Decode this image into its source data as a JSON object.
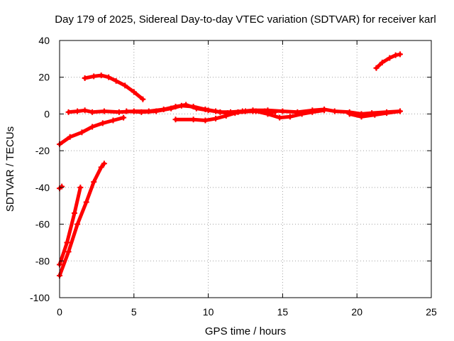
{
  "chart_data": {
    "type": "scatter",
    "title": "Day 179 of 2025, Sidereal Day-to-day VTEC variation (SDTVAR) for receiver karl",
    "xlabel": "GPS time / hours",
    "ylabel": "SDTVAR / TECUs",
    "xlim": [
      0,
      25
    ],
    "ylim": [
      -100,
      40
    ],
    "xticks": [
      0,
      5,
      10,
      15,
      20,
      25
    ],
    "yticks": [
      -100,
      -80,
      -60,
      -40,
      -20,
      0,
      20,
      40
    ],
    "xtick_labels": [
      "0",
      "5",
      "10",
      "15",
      "20",
      "25"
    ],
    "ytick_labels": [
      "-100",
      "-80",
      "-60",
      "-40",
      "-20",
      "0",
      "20",
      "40"
    ],
    "grid": true,
    "legend": "none",
    "color": "#ff0000",
    "series": [
      {
        "points": [
          [
            0.0,
            -40.5
          ],
          [
            0.15,
            -39.5
          ]
        ]
      },
      {
        "points": [
          [
            0.0,
            -82
          ],
          [
            0.5,
            -70
          ],
          [
            1.0,
            -54
          ],
          [
            1.4,
            -40
          ]
        ]
      },
      {
        "points": [
          [
            0.0,
            -88
          ],
          [
            0.6,
            -75
          ],
          [
            1.2,
            -60
          ],
          [
            1.8,
            -48
          ],
          [
            2.3,
            -37
          ],
          [
            2.8,
            -29
          ],
          [
            3.0,
            -27
          ]
        ]
      },
      {
        "points": [
          [
            0.0,
            -16.5
          ],
          [
            0.7,
            -12.5
          ],
          [
            1.5,
            -10
          ],
          [
            2.2,
            -7
          ],
          [
            2.9,
            -5
          ],
          [
            3.6,
            -3.5
          ],
          [
            4.3,
            -2
          ]
        ]
      },
      {
        "points": [
          [
            1.7,
            19.5
          ],
          [
            2.3,
            20.5
          ],
          [
            2.8,
            21
          ],
          [
            3.3,
            20
          ],
          [
            3.8,
            18
          ],
          [
            4.4,
            15.5
          ],
          [
            5.0,
            12
          ],
          [
            5.6,
            8
          ]
        ]
      },
      {
        "points": [
          [
            0.6,
            1
          ],
          [
            1.2,
            1.5
          ],
          [
            1.7,
            2
          ],
          [
            2.2,
            1
          ],
          [
            3.0,
            1.5
          ],
          [
            4.0,
            1
          ],
          [
            5.0,
            1.5
          ],
          [
            6.0,
            1.5
          ],
          [
            7.0,
            2.5
          ],
          [
            7.8,
            4
          ],
          [
            8.5,
            5
          ],
          [
            9.2,
            3
          ],
          [
            10.0,
            2
          ],
          [
            10.8,
            1
          ],
          [
            11.5,
            1
          ],
          [
            12.3,
            1.5
          ],
          [
            13.0,
            2
          ],
          [
            14.0,
            2
          ],
          [
            15.0,
            1.5
          ],
          [
            16.0,
            1
          ],
          [
            17.0,
            2
          ],
          [
            17.8,
            2.5
          ],
          [
            18.5,
            1.5
          ],
          [
            19.5,
            1
          ],
          [
            20.3,
            0
          ],
          [
            21.0,
            0.5
          ],
          [
            22.0,
            1
          ],
          [
            22.9,
            1.5
          ]
        ]
      },
      {
        "points": [
          [
            4.5,
            1.5
          ],
          [
            5.5,
            1
          ],
          [
            6.5,
            1.5
          ],
          [
            7.5,
            3
          ],
          [
            8.2,
            4.5
          ],
          [
            9.0,
            4
          ],
          [
            9.8,
            2.5
          ],
          [
            10.5,
            1.5
          ],
          [
            11.3,
            0.5
          ],
          [
            12.0,
            1
          ],
          [
            13.0,
            1.5
          ],
          [
            13.8,
            1.5
          ],
          [
            14.5,
            1
          ]
        ]
      },
      {
        "points": [
          [
            7.8,
            -3
          ],
          [
            9.0,
            -3
          ],
          [
            9.8,
            -3.5
          ],
          [
            10.5,
            -2.5
          ],
          [
            11.2,
            -1
          ],
          [
            11.8,
            0.5
          ],
          [
            12.5,
            1.5
          ],
          [
            13.2,
            1.5
          ],
          [
            14.0,
            0
          ],
          [
            14.8,
            -2
          ],
          [
            15.5,
            -1.5
          ],
          [
            16.3,
            0
          ],
          [
            17.0,
            1
          ],
          [
            17.8,
            2
          ]
        ]
      },
      {
        "points": [
          [
            19.5,
            0
          ],
          [
            20.3,
            -1.5
          ],
          [
            21.2,
            -0.5
          ],
          [
            22.0,
            0.5
          ],
          [
            22.9,
            1.5
          ]
        ]
      },
      {
        "points": [
          [
            21.3,
            25
          ],
          [
            21.7,
            28
          ],
          [
            22.2,
            30.5
          ],
          [
            22.6,
            32
          ],
          [
            22.9,
            32.5
          ]
        ]
      }
    ]
  }
}
